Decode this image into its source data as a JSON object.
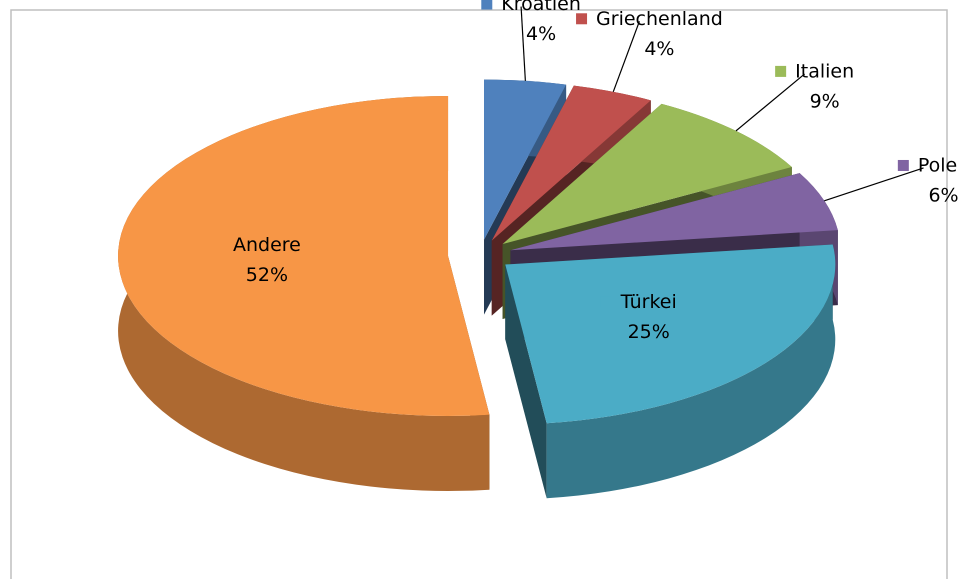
{
  "chart_data": {
    "type": "pie",
    "categories": [
      "Kroatien",
      "Griechenland",
      "Italien",
      "Polen",
      "Türkei",
      "Andere"
    ],
    "values": [
      4,
      4,
      9,
      6,
      25,
      52
    ],
    "value_labels": [
      "4%",
      "4%",
      "9%",
      "6%",
      "25%",
      "52%"
    ],
    "colors": [
      "#4f81bd",
      "#c0504d",
      "#9bbb59",
      "#8064a2",
      "#4bacc6",
      "#f79646"
    ]
  }
}
